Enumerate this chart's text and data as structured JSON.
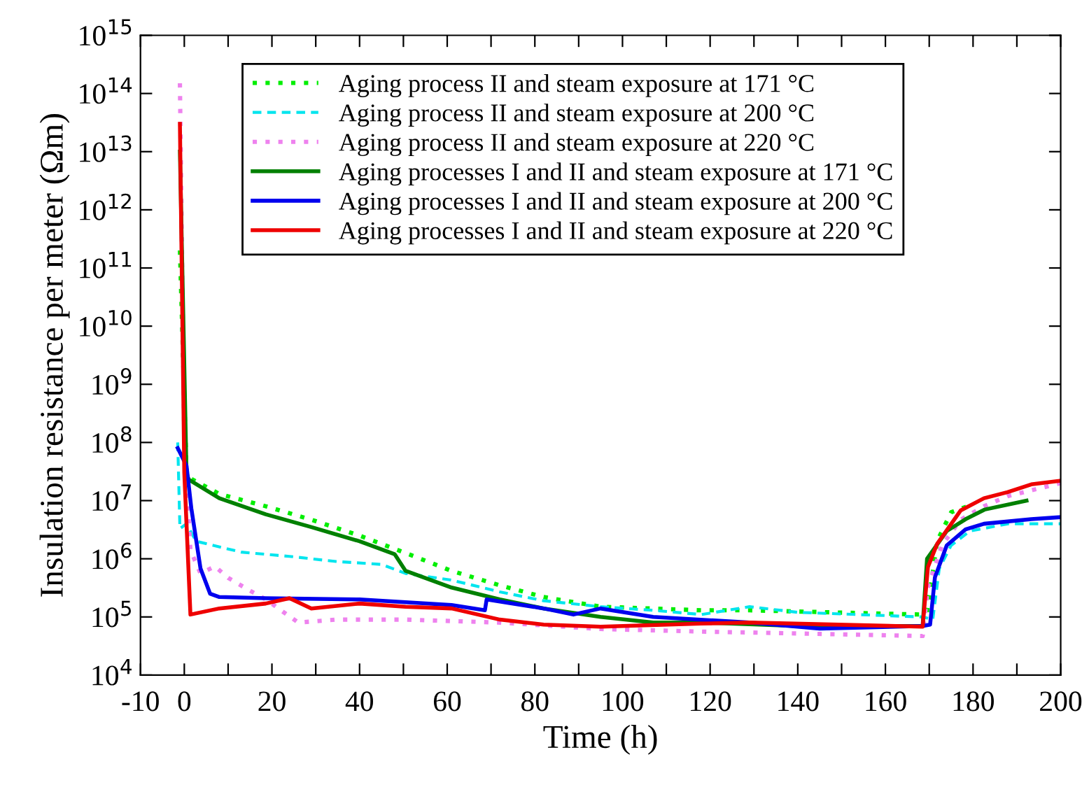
{
  "chart_data": {
    "type": "line",
    "xlabel": "Time (h)",
    "ylabel": "Insulation resistance per meter (Ωm)",
    "log": "y",
    "grid": false,
    "legend": "top",
    "marker": "none",
    "xlim": [
      -10,
      200
    ],
    "ylim": [
      10000,
      1000000000000000.0
    ],
    "xticks": [
      -10,
      0,
      {
        "value": 10,
        "label": null
      },
      20,
      {
        "value": 30,
        "label": null
      },
      40,
      {
        "value": 50,
        "label": null
      },
      60,
      {
        "value": 70,
        "label": null
      },
      80,
      {
        "value": 90,
        "label": null
      },
      100,
      {
        "value": 110,
        "label": null
      },
      120,
      {
        "value": 130,
        "label": null
      },
      140,
      {
        "value": 150,
        "label": null
      },
      160,
      {
        "value": 170,
        "label": null
      },
      180,
      {
        "value": 190,
        "label": null
      },
      200
    ],
    "yticks": [
      {
        "value": 10000,
        "label": "10$^{4}$"
      },
      {
        "value": 100000,
        "label": "10$^{5}$"
      },
      {
        "value": 1000000,
        "label": "10$^{6}$"
      },
      {
        "value": 10000000,
        "label": "10$^{7}$"
      },
      {
        "value": 100000000,
        "label": "10$^{8}$"
      },
      {
        "value": 1000000000,
        "label": "10$^{9}$"
      },
      {
        "value": 10000000000,
        "label": "10$^{10}$"
      },
      {
        "value": 100000000000,
        "label": "10$^{11}$"
      },
      {
        "value": 1000000000000,
        "label": "10$^{12}$"
      },
      {
        "value": 10000000000000,
        "label": "10$^{13}$"
      },
      {
        "value": 100000000000000,
        "label": "10$^{14}$"
      },
      {
        "value": 1000000000000000,
        "label": "10$^{15}$"
      }
    ],
    "series": [
      {
        "name": "Aging process II and steam exposure at 171 °C",
        "color": "#00ee00",
        "line_style": "dotted",
        "x": [
          -1,
          0.5,
          1,
          8,
          18.6,
          29,
          40,
          50,
          61,
          72,
          82,
          95,
          118,
          129,
          168,
          169.5,
          171.8,
          175,
          179.3
        ],
        "values": [
          200000000000.0,
          30000000.0,
          25000000.0,
          13000000.0,
          8000000.0,
          4700000.0,
          2500000.0,
          1300000.0,
          620000.0,
          350000.0,
          220000.0,
          150000.0,
          130000.0,
          130000.0,
          110000.0,
          120000.0,
          2000000.0,
          6300000.0,
          8300000.0
        ]
      },
      {
        "name": "Aging process II and steam exposure at 200 °C",
        "color": "#00e5ee",
        "line_style": "dashed",
        "x": [
          -1.5,
          -1,
          0.5,
          2.7,
          13,
          24,
          34.6,
          45,
          50.5,
          61,
          72,
          82,
          95,
          107,
          118,
          129,
          140,
          168.5,
          170.8,
          172.3,
          175,
          179.3,
          188,
          200
        ],
        "values": [
          100000000.0,
          3300000.0,
          4000000.0,
          2000000.0,
          1300000.0,
          1100000.0,
          900000.0,
          800000.0,
          560000.0,
          430000.0,
          270000.0,
          190000.0,
          150000.0,
          130000.0,
          110000.0,
          150000.0,
          120000.0,
          100000.0,
          90000.0,
          680000.0,
          1700000.0,
          3000000.0,
          4000000.0,
          4000000.0
        ]
      },
      {
        "name": "Aging process II and steam exposure at 220 °C",
        "color": "#ee82ee",
        "line_style": "dotted",
        "x": [
          -1,
          0,
          1.4,
          3.7,
          7,
          10,
          14.4,
          18.6,
          26,
          34.6,
          50.5,
          72,
          95,
          118,
          140,
          168.5,
          169.7,
          172.9,
          177.2,
          182.5,
          188,
          200
        ],
        "values": [
          150000000000000.0,
          100000000.0,
          1400000.0,
          560000.0,
          740000.0,
          470000.0,
          300000.0,
          200000.0,
          80000.0,
          90000.0,
          90000.0,
          80000.0,
          62000.0,
          56000.0,
          52000.0,
          47000.0,
          320000.0,
          1700000.0,
          4700000.0,
          8000000.0,
          12000000.0,
          20000000.0
        ]
      },
      {
        "name": "Aging processes I and II and steam exposure at 171 °C",
        "color": "#008000",
        "line_style": "solid",
        "x": [
          -1,
          0.5,
          1,
          8,
          18.6,
          29,
          40,
          48,
          50.5,
          61,
          72,
          82,
          95,
          107,
          118,
          140,
          168.5,
          169.5,
          174,
          178.3,
          182.6,
          192.2
        ],
        "values": [
          10000000000000.0,
          30000000.0,
          23000000.0,
          11000000.0,
          5800000.0,
          3500000.0,
          2000000.0,
          1200000.0,
          620000.0,
          320000.0,
          200000.0,
          140000.0,
          100000.0,
          80000.0,
          80000.0,
          70000.0,
          70000.0,
          1000000.0,
          3000000.0,
          4800000.0,
          7000000.0,
          10000000.0
        ]
      },
      {
        "name": "Aging processes I and II and steam exposure at 200 °C",
        "color": "#0000ee",
        "line_style": "solid",
        "x": [
          -1.5,
          0.5,
          1.6,
          3.7,
          5.9,
          8,
          18.6,
          40,
          61,
          68.6,
          69,
          82,
          88.8,
          95,
          107,
          129,
          145,
          168.5,
          170.2,
          171.3,
          174,
          178.3,
          182.5,
          193.3,
          200
        ],
        "values": [
          80000000.0,
          40000000.0,
          7400000.0,
          680000.0,
          250000.0,
          220000.0,
          210000.0,
          200000.0,
          160000.0,
          130000.0,
          200000.0,
          140000.0,
          110000.0,
          140000.0,
          100000.0,
          80000.0,
          63000.0,
          70000.0,
          74000.0,
          480000.0,
          1700000.0,
          3200000.0,
          4000000.0,
          4800000.0,
          5200000.0
        ]
      },
      {
        "name": "Aging processes I and II and steam exposure at 220 °C",
        "color": "#ee0000",
        "line_style": "solid",
        "x": [
          -1,
          0,
          1.4,
          8,
          18.6,
          24,
          29,
          40,
          50.5,
          61,
          72,
          82,
          95,
          118,
          129,
          168.5,
          169.7,
          171.8,
          177.2,
          182.5,
          187.9,
          193.3,
          200
        ],
        "values": [
          30000000000000.0,
          30000000.0,
          110000.0,
          140000.0,
          170000.0,
          210000.0,
          140000.0,
          170000.0,
          150000.0,
          140000.0,
          90000.0,
          74000.0,
          68000.0,
          77000.0,
          80000.0,
          68000.0,
          720000.0,
          1800000.0,
          6800000.0,
          11000000.0,
          14000000.0,
          19000000.0,
          22000000.0
        ]
      }
    ]
  }
}
